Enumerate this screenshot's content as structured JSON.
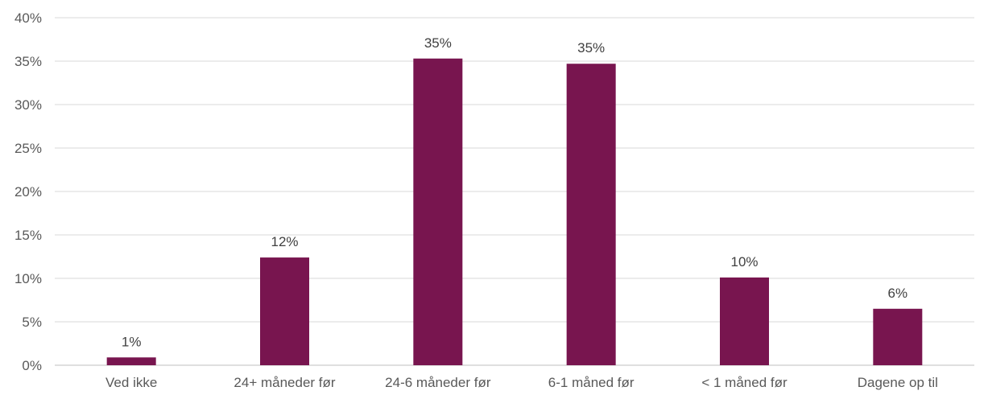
{
  "chart_data": {
    "type": "bar",
    "categories": [
      "Ved ikke",
      "24+ måneder før",
      "24-6 måneder før",
      "6-1 måned før",
      "< 1 måned før",
      "Dagene op til"
    ],
    "values": [
      0.9,
      12.4,
      35.3,
      34.7,
      10.1,
      6.5
    ],
    "data_labels": [
      "1%",
      "12%",
      "35%",
      "35%",
      "10%",
      "6%"
    ],
    "y_ticks": [
      "0%",
      "5%",
      "10%",
      "15%",
      "20%",
      "25%",
      "30%",
      "35%",
      "40%"
    ],
    "ylim": [
      0,
      40
    ],
    "y_step": 5,
    "grid": true,
    "legend": "none",
    "bar_color": "#78154f",
    "title": "",
    "xlabel": "",
    "ylabel": ""
  }
}
